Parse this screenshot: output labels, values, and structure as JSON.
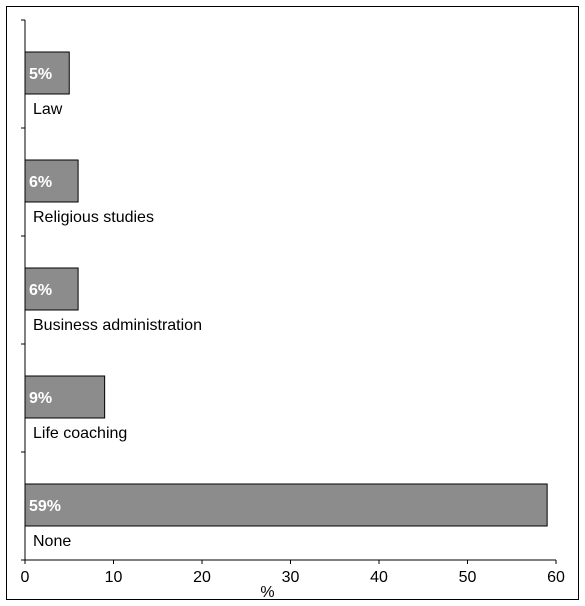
{
  "chart_data": {
    "type": "bar",
    "orientation": "horizontal",
    "categories": [
      "Law",
      "Religious studies",
      "Business administration",
      "Life coaching",
      "None"
    ],
    "values": [
      5,
      6,
      6,
      9,
      59
    ],
    "value_labels": [
      "5%",
      "6%",
      "6%",
      "9%",
      "59%"
    ],
    "xlabel": "%",
    "xlim": [
      0,
      60
    ],
    "xticks": [
      "0",
      "10",
      "20",
      "30",
      "40",
      "50",
      "60"
    ],
    "bar_color": "#8c8c8c",
    "grid": false
  }
}
